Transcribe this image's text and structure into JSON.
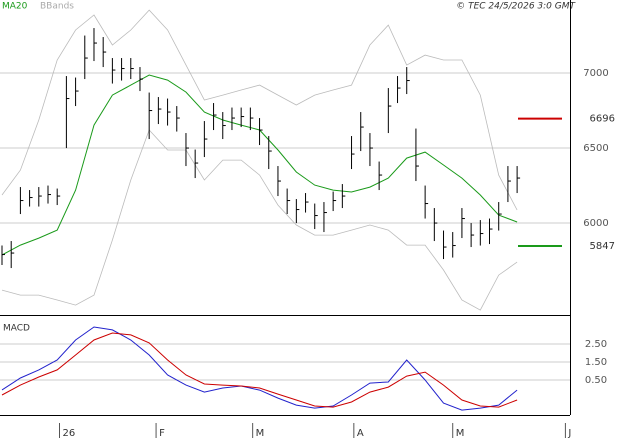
{
  "source": "© TEC 24/5/2026 3:0 GMT",
  "chart_data": [
    {
      "type": "ohlc",
      "xlim": [
        0,
        123.5
      ],
      "ylim": [
        5387,
        7487
      ],
      "yticks": [
        6000,
        6500,
        7000
      ],
      "grid": true,
      "x": [
        0,
        2,
        4,
        6,
        8,
        10,
        12,
        14,
        16,
        18,
        20,
        22,
        24,
        26,
        28,
        30,
        32,
        34,
        36,
        38,
        40,
        42,
        44,
        46,
        48,
        50,
        52,
        54,
        56,
        58,
        60,
        62,
        64,
        66,
        68,
        70,
        72,
        74,
        76,
        78,
        80,
        82,
        84,
        86,
        88,
        90,
        92,
        94,
        96,
        98,
        100,
        102,
        104,
        106,
        108,
        110,
        112
      ],
      "high": [
        5850,
        5880,
        6240,
        6220,
        6240,
        6250,
        6230,
        6980,
        6970,
        7250,
        7300,
        7240,
        7100,
        7100,
        7100,
        7040,
        6870,
        6840,
        6830,
        6780,
        6600,
        6490,
        6680,
        6800,
        6740,
        6770,
        6770,
        6770,
        6700,
        6580,
        6380,
        6230,
        6160,
        6200,
        6130,
        6140,
        6210,
        6260,
        6580,
        6740,
        6600,
        6410,
        6900,
        6980,
        7040,
        6630,
        6250,
        6100,
        5950,
        5940,
        6100,
        6000,
        6020,
        6030,
        6140,
        6380,
        6380
      ],
      "low": [
        5720,
        5700,
        6060,
        6110,
        6110,
        6130,
        6120,
        6500,
        6780,
        6960,
        7080,
        7040,
        6930,
        6950,
        6960,
        6880,
        6560,
        6660,
        6650,
        6610,
        6380,
        6300,
        6440,
        6620,
        6560,
        6620,
        6640,
        6620,
        6520,
        6360,
        6180,
        6060,
        6000,
        6070,
        5960,
        5940,
        6080,
        6100,
        6360,
        6480,
        6380,
        6220,
        6600,
        6800,
        6860,
        6280,
        6030,
        5880,
        5760,
        5770,
        5900,
        5840,
        5850,
        5860,
        5950,
        6140,
        6200
      ],
      "close": [
        5790,
        5800,
        6150,
        6170,
        6180,
        6190,
        6180,
        6830,
        6880,
        7100,
        7200,
        7140,
        7020,
        7030,
        7030,
        6960,
        6750,
        6760,
        6740,
        6700,
        6500,
        6400,
        6560,
        6720,
        6650,
        6700,
        6710,
        6700,
        6620,
        6480,
        6280,
        6150,
        6090,
        6140,
        6050,
        6070,
        6150,
        6180,
        6460,
        6640,
        6500,
        6320,
        6780,
        6900,
        6950,
        6380,
        6130,
        6000,
        5840,
        5850,
        6030,
        5920,
        5930,
        5960,
        6060,
        6280,
        6300
      ],
      "color": "#000000",
      "series": [
        {
          "name": "MA20",
          "color": "#1a9a1a",
          "x": [
            0,
            4,
            8,
            12,
            16,
            20,
            24,
            28,
            32,
            36,
            40,
            44,
            48,
            52,
            56,
            60,
            64,
            68,
            72,
            76,
            80,
            84,
            88,
            92,
            96,
            100,
            104,
            108,
            112
          ],
          "values": [
            5787,
            5853,
            5900,
            5953,
            6220,
            6653,
            6853,
            6920,
            6987,
            6953,
            6873,
            6740,
            6687,
            6653,
            6620,
            6487,
            6340,
            6253,
            6220,
            6207,
            6240,
            6300,
            6433,
            6473,
            6387,
            6300,
            6187,
            6053,
            6007
          ]
        },
        {
          "name": "BBands",
          "color": "#bbbbbb",
          "x": [
            0,
            4,
            8,
            12,
            16,
            20,
            24,
            28,
            32,
            36,
            40,
            44,
            48,
            52,
            56,
            60,
            64,
            68,
            72,
            76,
            80,
            84,
            88,
            92,
            96,
            100,
            104,
            108,
            112
          ],
          "values": [
            6187,
            6353,
            6687,
            7087,
            7287,
            7387,
            7187,
            7287,
            7420,
            7287,
            7053,
            6820,
            6853,
            6887,
            6920,
            6853,
            6787,
            6853,
            6887,
            6920,
            7187,
            7320,
            7053,
            7120,
            7087,
            7087,
            6853,
            6320,
            6087
          ],
          "lower": [
            5553,
            5520,
            5520,
            5487,
            5453,
            5520,
            5887,
            6287,
            6620,
            6487,
            6487,
            6287,
            6420,
            6420,
            6320,
            6120,
            5987,
            5920,
            5920,
            5953,
            5987,
            5953,
            5853,
            5853,
            5687,
            5487,
            5420,
            5653,
            5740
          ]
        }
      ],
      "levels": [
        {
          "value": 6696,
          "color": "#cc0000"
        },
        {
          "value": 5847,
          "color": "#1a9a1a"
        }
      ]
    },
    {
      "type": "line",
      "title": "MACD",
      "xlim": [
        0,
        123.5
      ],
      "ylim": [
        -1.44,
        3.94
      ],
      "yticks": [
        {
          "value": 2.5,
          "label": "2.50"
        },
        {
          "value": 1.5,
          "label": "1.50"
        },
        {
          "value": 0.5,
          "label": "0.50"
        }
      ],
      "xticks": [
        {
          "value": 12.5,
          "label": "26"
        },
        {
          "value": 33.5,
          "label": "F"
        },
        {
          "value": 54.5,
          "label": "M"
        },
        {
          "value": 76.5,
          "label": "A"
        },
        {
          "value": 98,
          "label": "M"
        },
        {
          "value": 122.5,
          "label": "J"
        }
      ],
      "grid": true,
      "x": [
        0,
        4,
        8,
        12,
        16,
        20,
        24,
        28,
        32,
        36,
        40,
        44,
        48,
        52,
        56,
        60,
        64,
        68,
        72,
        76,
        80,
        84,
        88,
        92,
        96,
        100,
        104,
        108,
        112
      ],
      "lines": [
        {
          "color": "#2222cc",
          "values": [
            -0.05,
            0.61,
            1.06,
            1.61,
            2.72,
            3.44,
            3.28,
            2.72,
            1.89,
            0.78,
            0.22,
            -0.17,
            0.06,
            0.17,
            -0.06,
            -0.5,
            -0.89,
            -1.06,
            -0.94,
            -0.33,
            0.33,
            0.39,
            1.61,
            0.5,
            -0.78,
            -1.17,
            -1.06,
            -0.89,
            -0.06
          ]
        },
        {
          "color": "#cc0000",
          "values": [
            -0.33,
            0.22,
            0.67,
            1.06,
            1.89,
            2.72,
            3.11,
            3.0,
            2.56,
            1.61,
            0.78,
            0.28,
            0.22,
            0.17,
            0.06,
            -0.28,
            -0.61,
            -0.94,
            -1.0,
            -0.72,
            -0.17,
            0.11,
            0.72,
            0.94,
            0.22,
            -0.61,
            -0.94,
            -1.0,
            -0.61
          ]
        }
      ]
    }
  ]
}
